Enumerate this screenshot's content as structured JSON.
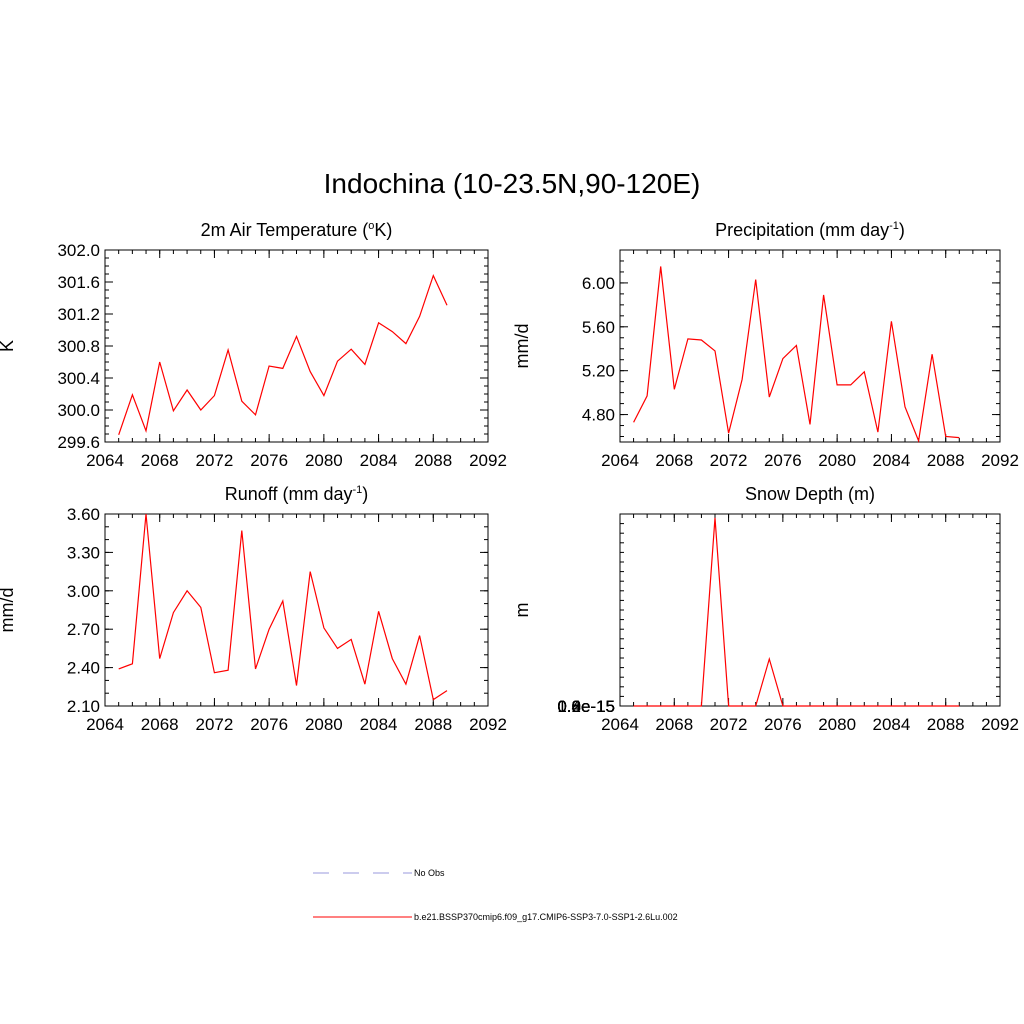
{
  "title": "Indochina (10-23.5N,90-120E)",
  "chart_data": [
    {
      "type": "line",
      "title": "2m Air Temperature (",
      "title_sup": "o",
      "title_after": "K)",
      "ylabel": "K",
      "xlim": [
        2064,
        2092
      ],
      "ylim": [
        299.6,
        302.0
      ],
      "xticks": [
        2064,
        2068,
        2072,
        2076,
        2080,
        2084,
        2088,
        2092
      ],
      "yticks": [
        "299.6",
        "300.0",
        "300.4",
        "300.8",
        "301.2",
        "301.6",
        "302.0"
      ],
      "yminor": 0.1,
      "x": [
        2065,
        2066,
        2067,
        2068,
        2069,
        2070,
        2071,
        2072,
        2073,
        2074,
        2075,
        2076,
        2077,
        2078,
        2079,
        2080,
        2081,
        2082,
        2083,
        2084,
        2085,
        2086,
        2087,
        2088,
        2089
      ],
      "series": [
        {
          "values": [
            299.69,
            300.19,
            299.74,
            300.6,
            299.99,
            300.25,
            300.0,
            300.18,
            300.75,
            300.11,
            299.94,
            300.55,
            300.52,
            300.92,
            300.48,
            300.18,
            300.61,
            300.76,
            300.57,
            301.09,
            300.98,
            300.83,
            301.17,
            301.68,
            301.31
          ]
        }
      ]
    },
    {
      "type": "line",
      "title": "Precipitation (mm day",
      "title_sup": "-1",
      "title_after": ")",
      "ylabel": "mm/d",
      "xlim": [
        2064,
        2092
      ],
      "ylim": [
        4.55,
        6.3
      ],
      "xticks": [
        2064,
        2068,
        2072,
        2076,
        2080,
        2084,
        2088,
        2092
      ],
      "yticks": [
        "4.80",
        "5.20",
        "5.60",
        "6.00"
      ],
      "yminor": 0.1,
      "x": [
        2065,
        2066,
        2067,
        2068,
        2069,
        2070,
        2071,
        2072,
        2073,
        2074,
        2075,
        2076,
        2077,
        2078,
        2079,
        2080,
        2081,
        2082,
        2083,
        2084,
        2085,
        2086,
        2087,
        2088,
        2089
      ],
      "series": [
        {
          "values": [
            4.73,
            4.97,
            6.15,
            5.03,
            5.49,
            5.48,
            5.38,
            4.63,
            5.12,
            6.03,
            4.96,
            5.31,
            5.43,
            4.71,
            5.89,
            5.07,
            5.07,
            5.19,
            4.64,
            5.65,
            4.87,
            4.56,
            5.35,
            4.6,
            4.59
          ]
        }
      ]
    },
    {
      "type": "line",
      "title": "Runoff (mm day",
      "title_sup": "-1",
      "title_after": ")",
      "ylabel": "mm/d",
      "xlim": [
        2064,
        2092
      ],
      "ylim": [
        2.1,
        3.6
      ],
      "xticks": [
        2064,
        2068,
        2072,
        2076,
        2080,
        2084,
        2088,
        2092
      ],
      "yticks": [
        "2.10",
        "2.40",
        "2.70",
        "3.00",
        "3.30",
        "3.60"
      ],
      "yminor": 0.1,
      "x": [
        2065,
        2066,
        2067,
        2068,
        2069,
        2070,
        2071,
        2072,
        2073,
        2074,
        2075,
        2076,
        2077,
        2078,
        2079,
        2080,
        2081,
        2082,
        2083,
        2084,
        2085,
        2086,
        2087,
        2088,
        2089
      ],
      "series": [
        {
          "values": [
            2.39,
            2.43,
            3.6,
            2.47,
            2.83,
            3.0,
            2.87,
            2.36,
            2.38,
            3.47,
            2.39,
            2.7,
            2.92,
            2.26,
            3.15,
            2.71,
            2.55,
            2.62,
            2.27,
            2.84,
            2.47,
            2.27,
            2.65,
            2.15,
            2.22
          ]
        }
      ]
    },
    {
      "type": "line",
      "title": "Snow Depth (m)",
      "title_sup": "",
      "title_after": "",
      "ylabel": "m",
      "xlim": [
        2064,
        2092
      ],
      "ylim": [
        0.0,
        1.0
      ],
      "xticks": [
        2064,
        2068,
        2072,
        2076,
        2080,
        2084,
        2088,
        2092
      ],
      "yticks": [
        "0.0e-15",
        "0.2e-15",
        "0.4e-15",
        "0.6e-15",
        "0.8e-15",
        "1.0e-15"
      ],
      "yminor": 0.05,
      "x": [
        2065,
        2066,
        2067,
        2068,
        2069,
        2070,
        2071,
        2072,
        2073,
        2074,
        2075,
        2076,
        2077,
        2078,
        2079,
        2080,
        2081,
        2082,
        2083,
        2084,
        2085,
        2086,
        2087,
        2088,
        2089
      ],
      "series": [
        {
          "values": [
            0,
            0,
            0,
            0,
            0,
            0,
            0.98,
            0,
            0,
            0,
            0.245,
            0,
            0,
            0,
            0,
            0,
            0,
            0,
            0,
            0,
            0,
            0,
            0,
            0,
            0
          ]
        }
      ]
    }
  ],
  "legend": [
    {
      "label": "No Obs",
      "color": "#9999dd",
      "dashed": true
    },
    {
      "label": "b.e21.BSSP370cmip6.f09_g17.CMIP6-SSP3-7.0-SSP1-2.6Lu.002",
      "color": "#ff0000",
      "dashed": false
    }
  ],
  "colors": {
    "series": "#ff0000",
    "axes": "#000000"
  }
}
